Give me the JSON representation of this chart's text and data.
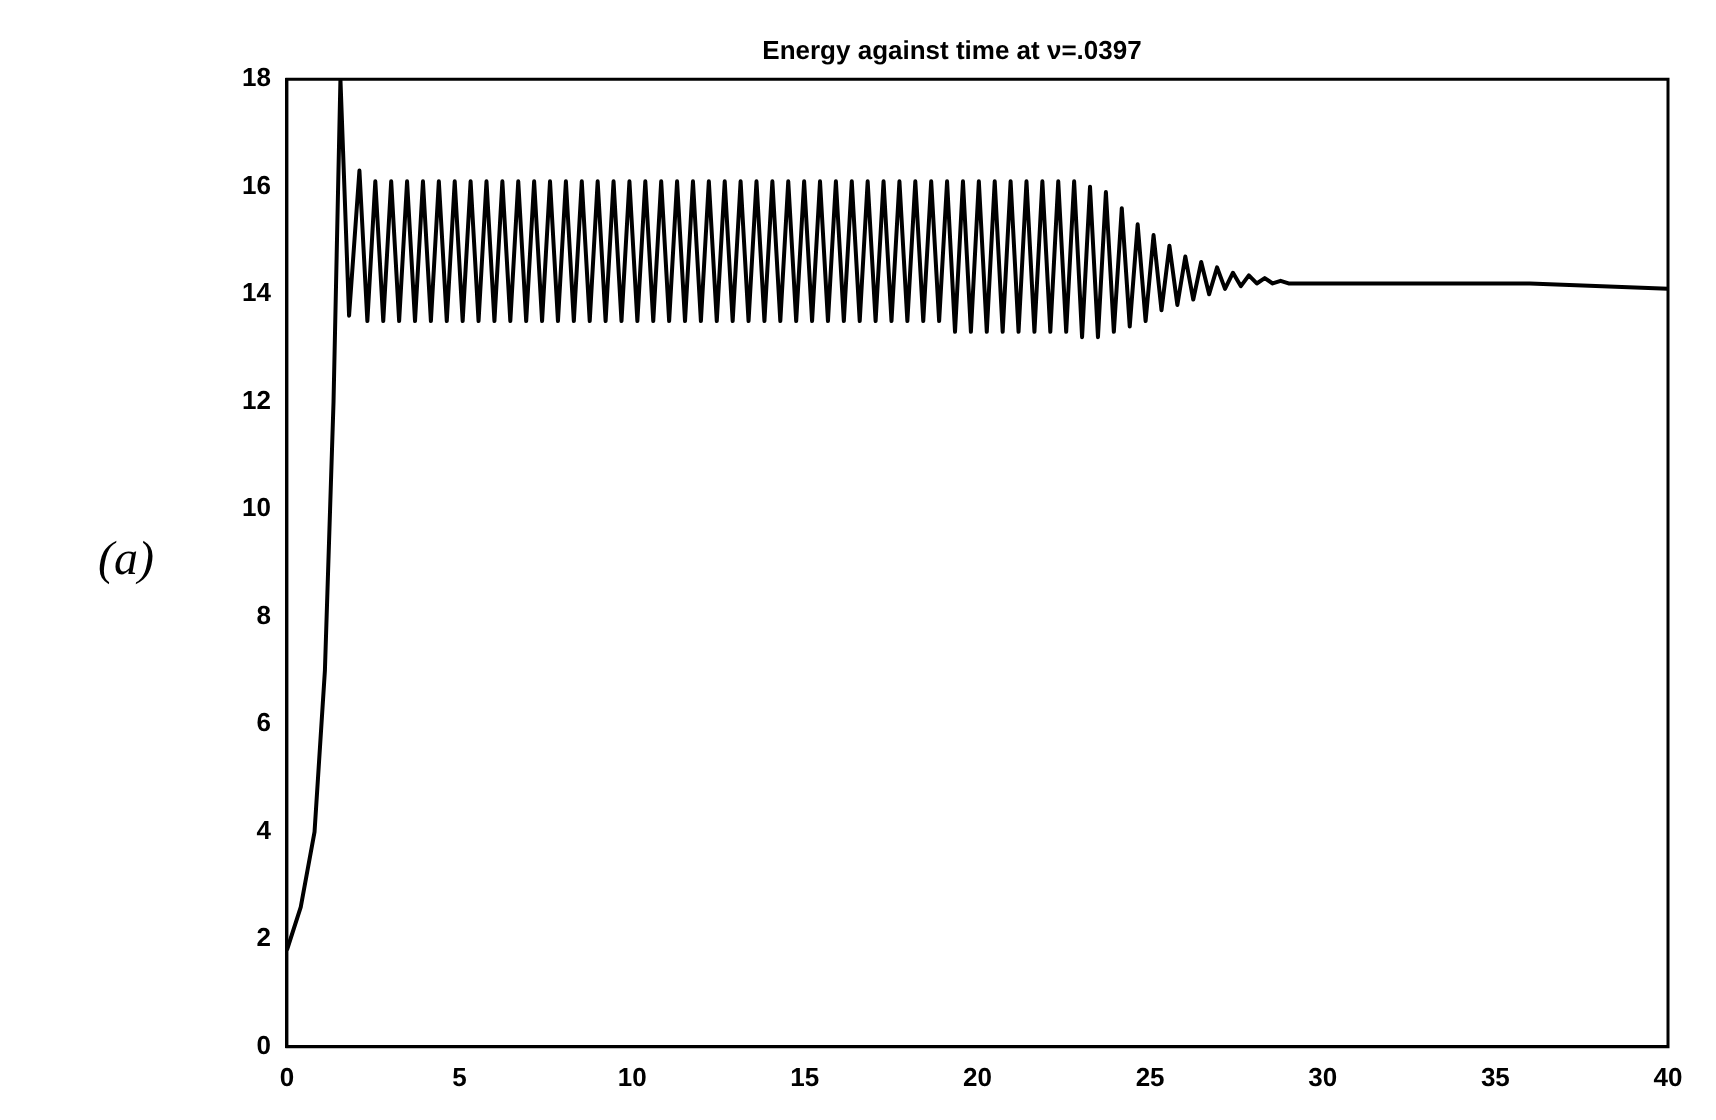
{
  "chart_data": {
    "type": "line",
    "title": "Energy against time at ν=.0397",
    "annotations": [
      "(a)"
    ],
    "xlim": [
      0,
      40
    ],
    "xticks": [
      0,
      5,
      10,
      15,
      20,
      25,
      30,
      35,
      40
    ],
    "ylim": [
      0,
      18
    ],
    "yticks": [
      0,
      2,
      4,
      6,
      8,
      10,
      12,
      14,
      16,
      18
    ],
    "grid": false,
    "legend": false,
    "marker": "none",
    "line_style": "solid",
    "series": [
      {
        "color": "#000000",
        "x": [
          0,
          0.4,
          0.8,
          1.1,
          1.35,
          1.55,
          1.8,
          2.1,
          2.33,
          2.56,
          2.79,
          3.02,
          3.25,
          3.48,
          3.71,
          3.94,
          4.17,
          4.4,
          4.63,
          4.86,
          5.09,
          5.32,
          5.55,
          5.78,
          6.01,
          6.24,
          6.47,
          6.7,
          6.93,
          7.16,
          7.39,
          7.62,
          7.85,
          8.08,
          8.31,
          8.54,
          8.77,
          9.0,
          9.23,
          9.46,
          9.69,
          9.92,
          10.15,
          10.38,
          10.61,
          10.84,
          11.07,
          11.3,
          11.53,
          11.76,
          11.99,
          12.22,
          12.45,
          12.68,
          12.91,
          13.14,
          13.37,
          13.6,
          13.83,
          14.06,
          14.29,
          14.52,
          14.75,
          14.98,
          15.21,
          15.44,
          15.67,
          15.9,
          16.13,
          16.36,
          16.59,
          16.82,
          17.05,
          17.28,
          17.51,
          17.74,
          17.97,
          18.2,
          18.43,
          18.66,
          18.89,
          19.12,
          19.35,
          19.58,
          19.81,
          20.04,
          20.27,
          20.5,
          20.73,
          20.96,
          21.19,
          21.42,
          21.65,
          21.88,
          22.11,
          22.34,
          22.57,
          22.8,
          23.03,
          23.26,
          23.49,
          23.72,
          23.95,
          24.18,
          24.41,
          24.64,
          24.87,
          25.1,
          25.33,
          25.56,
          25.79,
          26.02,
          26.25,
          26.48,
          26.71,
          26.94,
          27.17,
          27.4,
          27.63,
          27.86,
          28.09,
          28.32,
          28.55,
          28.78,
          29.01,
          32,
          36,
          40
        ],
        "values": [
          1.8,
          2.6,
          4,
          7,
          12,
          18,
          13.6,
          16.3,
          13.5,
          16.1,
          13.5,
          16.1,
          13.5,
          16.1,
          13.5,
          16.1,
          13.5,
          16.1,
          13.5,
          16.1,
          13.5,
          16.1,
          13.5,
          16.1,
          13.5,
          16.1,
          13.5,
          16.1,
          13.5,
          16.1,
          13.5,
          16.1,
          13.5,
          16.1,
          13.5,
          16.1,
          13.5,
          16.1,
          13.5,
          16.1,
          13.5,
          16.1,
          13.5,
          16.1,
          13.5,
          16.1,
          13.5,
          16.1,
          13.5,
          16.1,
          13.5,
          16.1,
          13.5,
          16.1,
          13.5,
          16.1,
          13.5,
          16.1,
          13.5,
          16.1,
          13.5,
          16.1,
          13.5,
          16.1,
          13.5,
          16.1,
          13.5,
          16.1,
          13.5,
          16.1,
          13.5,
          16.1,
          13.5,
          16.1,
          13.5,
          16.1,
          13.5,
          16.1,
          13.5,
          16.1,
          13.5,
          16.1,
          13.3,
          16.1,
          13.3,
          16.1,
          13.3,
          16.1,
          13.3,
          16.1,
          13.3,
          16.1,
          13.3,
          16.1,
          13.3,
          16.1,
          13.3,
          16.1,
          13.2,
          16.0,
          13.2,
          15.9,
          13.3,
          15.6,
          13.4,
          15.3,
          13.5,
          15.1,
          13.7,
          14.9,
          13.8,
          14.7,
          13.9,
          14.6,
          14.0,
          14.5,
          14.1,
          14.4,
          14.15,
          14.35,
          14.2,
          14.3,
          14.2,
          14.25,
          14.2,
          14.2,
          14.2,
          14.1
        ]
      }
    ]
  }
}
